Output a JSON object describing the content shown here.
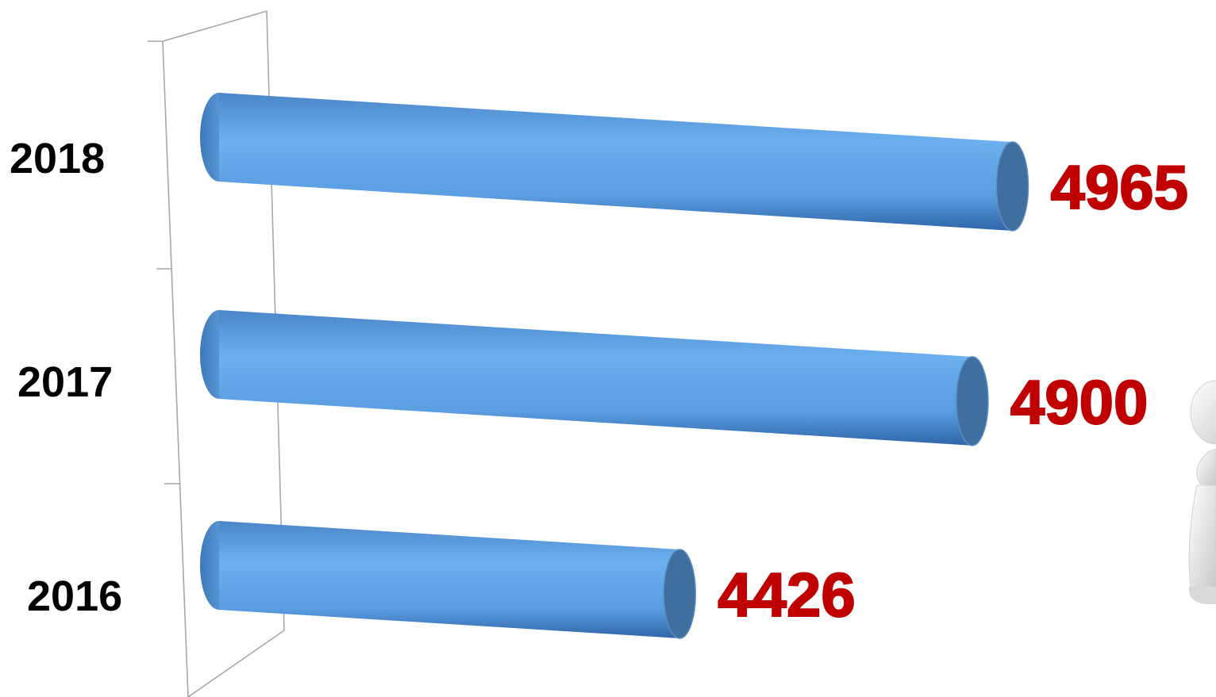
{
  "colors": {
    "bar": "#4f8fd6",
    "bar_highlight": "#6cb0f0",
    "bar_shadow": "#2f66a8",
    "bar_cap": "#3e6f9e",
    "value_label": "#c00000",
    "category_label": "#000000",
    "axis": "#a6a6a6"
  },
  "chart_data": {
    "type": "bar",
    "orientation": "horizontal",
    "style": "3d-cylinder",
    "categories": [
      "2016",
      "2017",
      "2018"
    ],
    "values": [
      4426,
      4900,
      4965
    ],
    "value_labels": [
      "4426",
      "4900",
      "4965"
    ],
    "title": "",
    "xlabel": "",
    "ylabel": "",
    "xlim": [
      3680,
      4965
    ],
    "grid": false,
    "legend": "none"
  },
  "decoration": {
    "figure_icon": "person-figure-icon"
  }
}
